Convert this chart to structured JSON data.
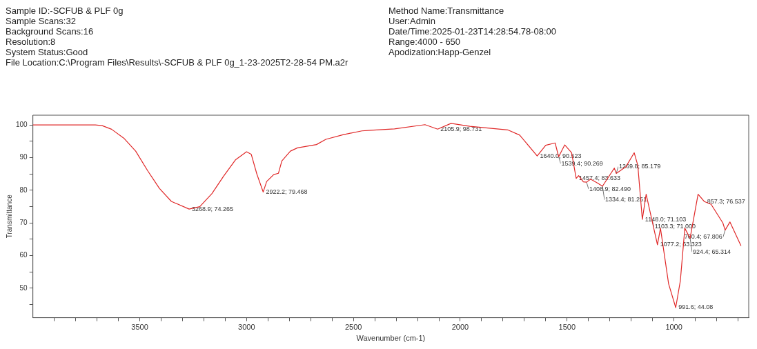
{
  "chart_data": {
    "type": "line",
    "xlabel": "Wavenumber (cm-1)",
    "ylabel": "Transmittance",
    "xlim": [
      4000,
      650
    ],
    "ylim": [
      41,
      103
    ],
    "xticks": [
      {
        "value": 3900,
        "label": null
      },
      {
        "value": 3800,
        "label": null
      },
      {
        "value": 3700,
        "label": null
      },
      {
        "value": 3600,
        "label": null
      },
      3500,
      {
        "value": 3400,
        "label": null
      },
      {
        "value": 3300,
        "label": null
      },
      {
        "value": 3200,
        "label": null
      },
      {
        "value": 3100,
        "label": null
      },
      3000,
      {
        "value": 2900,
        "label": null
      },
      {
        "value": 2800,
        "label": null
      },
      {
        "value": 2700,
        "label": null
      },
      {
        "value": 2600,
        "label": null
      },
      2500,
      {
        "value": 2400,
        "label": null
      },
      {
        "value": 2300,
        "label": null
      },
      {
        "value": 2200,
        "label": null
      },
      {
        "value": 2100,
        "label": null
      },
      2000,
      {
        "value": 1900,
        "label": null
      },
      {
        "value": 1800,
        "label": null
      },
      {
        "value": 1700,
        "label": null
      },
      {
        "value": 1600,
        "label": null
      },
      1500,
      {
        "value": 1400,
        "label": null
      },
      {
        "value": 1300,
        "label": null
      },
      {
        "value": 1200,
        "label": null
      },
      {
        "value": 1100,
        "label": null
      },
      1000,
      {
        "value": 900,
        "label": null
      },
      {
        "value": 800,
        "label": null
      },
      {
        "value": 700,
        "label": null
      }
    ],
    "yticks": [
      {
        "value": 45,
        "label": null
      },
      50,
      {
        "value": 55,
        "label": null
      },
      60,
      {
        "value": 65,
        "label": null
      },
      70,
      {
        "value": 75,
        "label": null
      },
      80,
      {
        "value": 85,
        "label": null
      },
      90,
      {
        "value": 95,
        "label": null
      },
      100
    ],
    "grid": false,
    "legend": false,
    "marker": "none",
    "line_style": "solid",
    "series": [
      {
        "color": "#e02828",
        "x": [
          4000,
          3800,
          3708,
          3676,
          3632,
          3575,
          3519,
          3463,
          3408,
          3352,
          3268.9,
          3219,
          3162,
          3108,
          3051,
          3000,
          2978,
          2952,
          2922.2,
          2906,
          2873,
          2851,
          2835,
          2795,
          2762,
          2673,
          2629,
          2549,
          2460,
          2419,
          2308,
          2165,
          2105.9,
          2043,
          1955,
          1778,
          1722,
          1640.0,
          1600,
          1556,
          1539.4,
          1511,
          1479,
          1457.4,
          1446,
          1424,
          1408.9,
          1390,
          1357,
          1334.4,
          1279,
          1269.8,
          1225,
          1186,
          1169,
          1148.0,
          1130,
          1103.3,
          1081,
          1077.2,
          1063,
          1025,
          991.6,
          970,
          949,
          924.4,
          887,
          857.3,
          826,
          771,
          760.4,
          738,
          686
        ],
        "values": [
          100,
          100,
          100,
          99.8,
          98.7,
          96,
          92,
          86,
          80.6,
          76.6,
          74.265,
          75,
          79,
          84.3,
          89.4,
          91.8,
          91,
          85,
          79.468,
          82.7,
          84.8,
          85.2,
          89,
          92,
          93,
          94,
          95.6,
          97,
          98.2,
          98.4,
          98.8,
          100.1,
          98.731,
          100.5,
          99.6,
          98.5,
          96.9,
          90.523,
          93.8,
          94.5,
          90.269,
          93.9,
          91.5,
          83.633,
          84.5,
          82.6,
          82.49,
          83.4,
          82.2,
          81.251,
          86.8,
          85.179,
          87.2,
          91.5,
          87.6,
          71.103,
          78.8,
          71.0,
          64.5,
          63.323,
          68.4,
          51.4,
          44.08,
          52.3,
          68.4,
          65.314,
          78.8,
          76.537,
          75.7,
          70,
          67.806,
          70.3,
          63
        ]
      }
    ],
    "annotations": [
      "Sample ID:-SCFUB & PLF 0g",
      "Method Name:Transmittance",
      "Sample Scans:32",
      "User:Admin",
      "Background Scans:16",
      "Date/Time:2025-01-23T14:28:54.78-08:00",
      "Resolution:8",
      "Range:4000 - 650",
      "System Status:Good",
      "Apodization:Happ-Genzel",
      "File Location:C:\\Program Files\\Results\\-SCFUB & PLF 0g_1-23-2025T2-28-54 PM.a2r",
      {
        "text": "3268.9; 74.265",
        "x": 3268.9,
        "y": 74.265
      },
      {
        "text": "2922.2; 79.468",
        "x": 2922.2,
        "y": 79.468
      },
      {
        "text": "2105.9; 98.731",
        "x": 2105.9,
        "y": 98.731
      },
      {
        "text": "1640.0; 90.523",
        "x": 1640.0,
        "y": 90.523
      },
      {
        "text": "1539.4; 90.269",
        "x": 1539.4,
        "y": 90.269
      },
      {
        "text": "1457.4; 83.633",
        "x": 1457.4,
        "y": 83.633
      },
      {
        "text": "1408.9; 82.490",
        "x": 1408.9,
        "y": 82.49
      },
      {
        "text": "1334.4; 81.251",
        "x": 1334.4,
        "y": 81.251
      },
      {
        "text": "1269.8; 85.179",
        "x": 1269.8,
        "y": 85.179
      },
      {
        "text": "857.3; 76.537",
        "x": 857.3,
        "y": 76.537
      },
      {
        "text": "1148.0; 71.103",
        "x": 1148.0,
        "y": 71.103
      },
      {
        "text": "1103.3; 71.000",
        "x": 1103.3,
        "y": 71.0
      },
      {
        "text": "760.4; 67.806",
        "x": 760.4,
        "y": 67.806
      },
      {
        "text": "1077.2; 63.323",
        "x": 1077.2,
        "y": 63.323
      },
      {
        "text": "924.4; 65.314",
        "x": 924.4,
        "y": 65.314
      },
      {
        "text": "991.6; 44.08",
        "x": 991.6,
        "y": 44.08
      }
    ]
  }
}
